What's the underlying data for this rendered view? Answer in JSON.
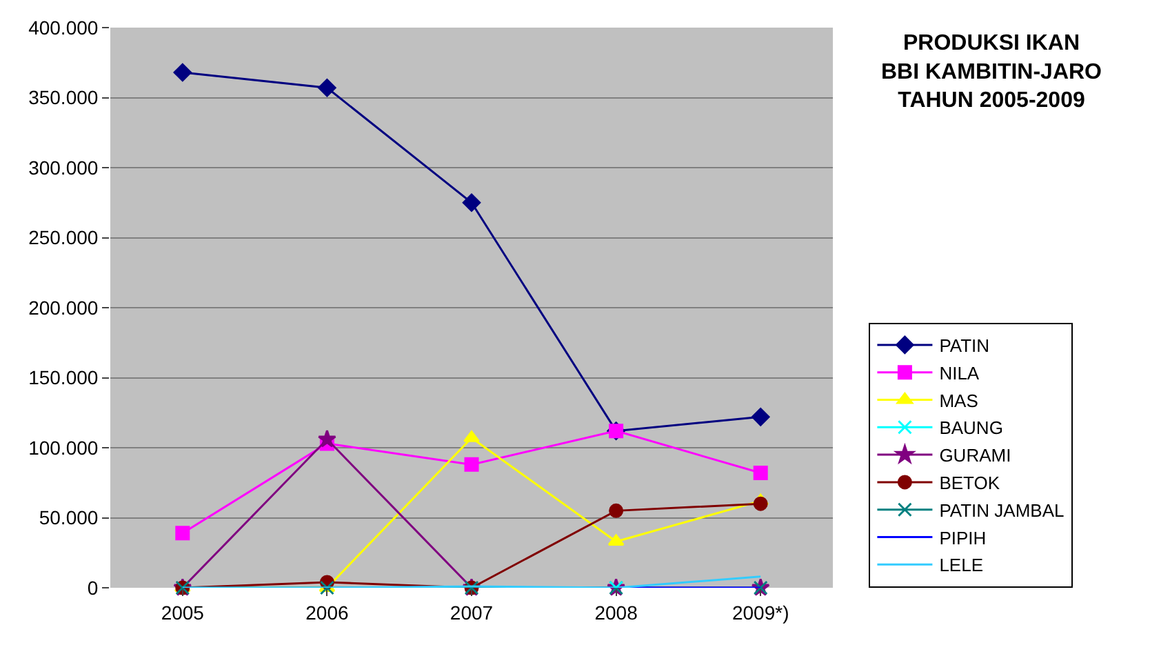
{
  "chart_data": {
    "type": "line",
    "title": "PRODUKSI IKAN\nBBI KAMBITIN-JARO\nTAHUN 2005-2009",
    "categories": [
      "2005",
      "2006",
      "2007",
      "2008",
      "2009*)"
    ],
    "series": [
      {
        "name": "PATIN",
        "color": "#000080",
        "marker": "diamond",
        "values": [
          368000,
          357000,
          275000,
          112000,
          122000
        ]
      },
      {
        "name": "NILA",
        "color": "#ff00ff",
        "marker": "square",
        "values": [
          39000,
          103000,
          88000,
          112000,
          82000
        ]
      },
      {
        "name": "MAS",
        "color": "#ffff00",
        "marker": "triangle",
        "values": [
          0,
          0,
          107000,
          33000,
          62000
        ]
      },
      {
        "name": "BAUNG",
        "color": "#00ffff",
        "marker": "cross",
        "values": [
          null,
          null,
          null,
          0,
          null
        ]
      },
      {
        "name": "GURAMI",
        "color": "#800080",
        "marker": "star",
        "values": [
          0,
          106000,
          0,
          0,
          0
        ]
      },
      {
        "name": "BETOK",
        "color": "#800000",
        "marker": "circle",
        "values": [
          0,
          4000,
          0,
          55000,
          60000
        ]
      },
      {
        "name": "PATIN JAMBAL",
        "color": "#008080",
        "marker": "cross",
        "values": [
          0,
          0,
          0,
          0,
          0
        ]
      },
      {
        "name": "PIPIH",
        "color": "#0000ff",
        "marker": "none",
        "values": [
          null,
          null,
          null,
          0,
          0
        ]
      },
      {
        "name": "LELE",
        "color": "#33ccff",
        "marker": "none",
        "values": [
          0,
          0,
          1000,
          0,
          8000
        ]
      }
    ],
    "ylim": [
      0,
      400000
    ],
    "yticks": [
      {
        "value": 0,
        "label": "0"
      },
      {
        "value": 50000,
        "label": "50.000"
      },
      {
        "value": 100000,
        "label": "100.000"
      },
      {
        "value": 150000,
        "label": "150.000"
      },
      {
        "value": 200000,
        "label": "200.000"
      },
      {
        "value": 250000,
        "label": "250.000"
      },
      {
        "value": 300000,
        "label": "300.000"
      },
      {
        "value": 350000,
        "label": "350.000"
      },
      {
        "value": 400000,
        "label": "400.000"
      }
    ],
    "grid": "y",
    "legend": "right",
    "line_style": "solid"
  }
}
